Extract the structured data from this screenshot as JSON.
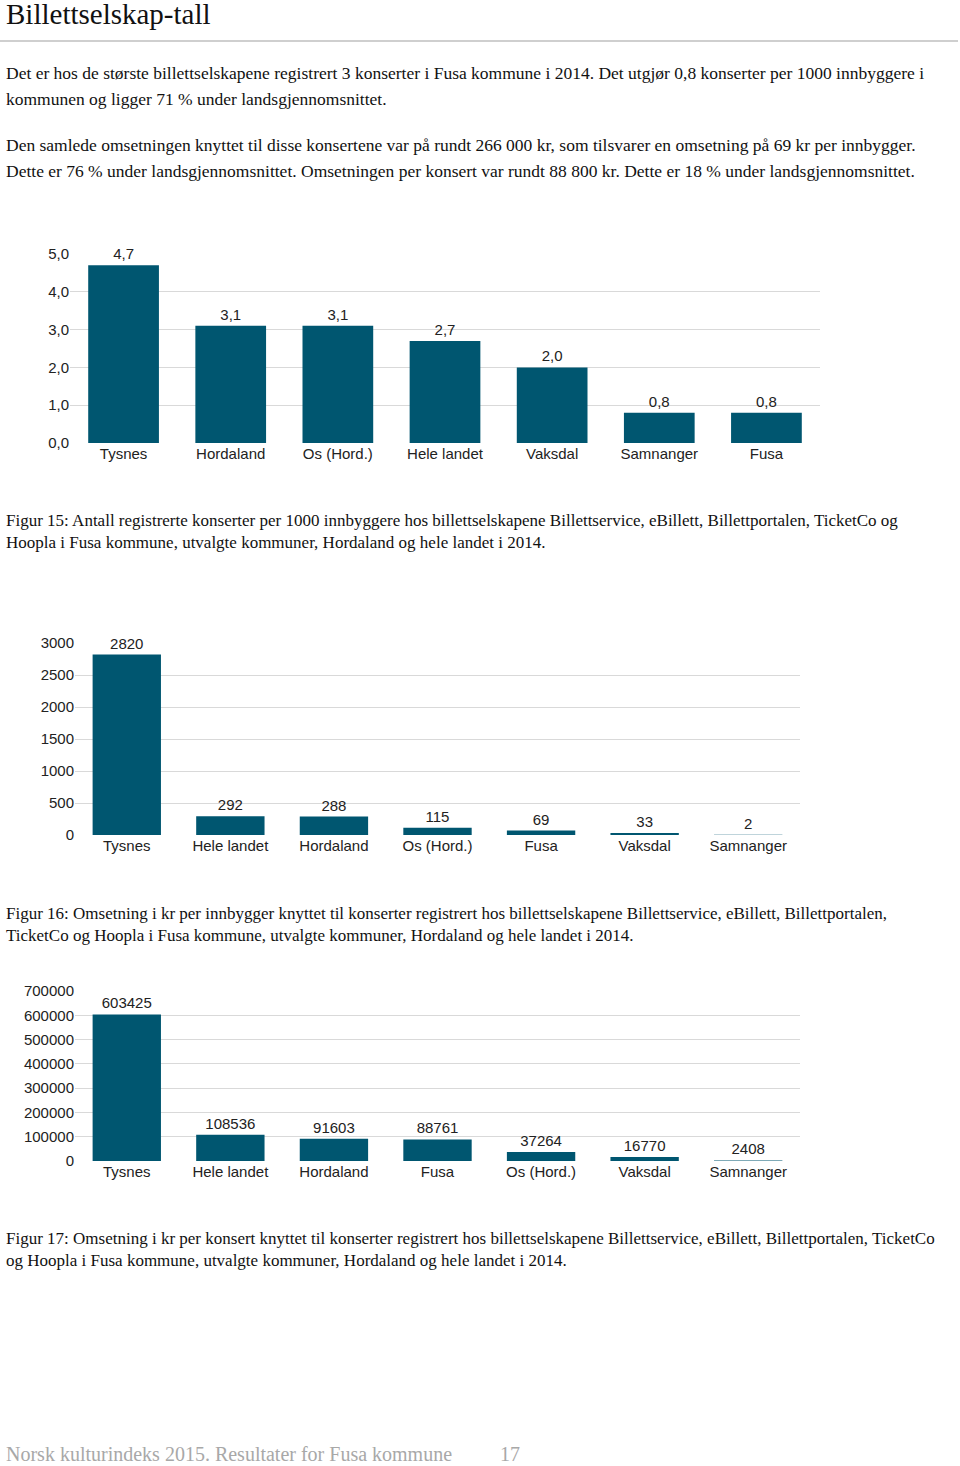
{
  "document": {
    "title": "Billettselskap-tall",
    "paragraphs": [
      "Det er hos de største billettselskapene registrert 3 konserter i Fusa kommune i 2014. Det utgjør 0,8 konserter per 1000 innbyggere i kommunen og ligger 71 % under landsgjennomsnittet.",
      "Den samlede omsetningen knyttet til disse konsertene var på rundt 266 000 kr, som tilsvarer en omsetning på 69 kr per innbygger. Dette er 76 % under landsgjennomsnittet. Omsetningen per konsert var rundt 88 800 kr. Dette er 18 % under landsgjennomsnittet."
    ],
    "captions": [
      "Figur 15: Antall registrerte konserter per 1000 innbyggere hos billettselskapene Billettservice, eBillett, Billettportalen, TicketCo og Hoopla i Fusa kommune, utvalgte kommuner, Hordaland og hele landet  i 2014.",
      "Figur 16: Omsetning i kr per innbygger knyttet til konserter registrert hos billettselskapene Billettservice, eBillett, Billettportalen, TicketCo og Hoopla i Fusa kommune, utvalgte kommuner, Hordaland og hele landet i 2014.",
      "Figur 17: Omsetning i kr per konsert knyttet til konserter registrert hos billettselskapene Billettservice, eBillett, Billettportalen, TicketCo og Hoopla i Fusa kommune, utvalgte kommuner, Hordaland og hele landet  i 2014."
    ],
    "footer": "Norsk kulturindeks 2015. Resultater for Fusa kommune",
    "page_number": "17"
  },
  "chart_data": [
    {
      "type": "bar",
      "categories": [
        "Tysnes",
        "Hordaland",
        "Os (Hord.)",
        "Hele landet",
        "Vaksdal",
        "Samnanger",
        "Fusa"
      ],
      "values": [
        4.7,
        3.1,
        3.1,
        2.7,
        2.0,
        0.8,
        0.8
      ],
      "value_labels": [
        "4,7",
        "3,1",
        "3,1",
        "2,7",
        "2,0",
        "0,8",
        "0,8"
      ],
      "color": "#005670",
      "ylim": [
        0,
        5
      ],
      "yticks": [
        {
          "value": 0,
          "label": "0,0"
        },
        {
          "value": 1,
          "label": "1,0"
        },
        {
          "value": 2,
          "label": "2,0"
        },
        {
          "value": 3,
          "label": "3,0"
        },
        {
          "value": 4,
          "label": "4,0"
        },
        {
          "value": 5,
          "label": "5,0"
        }
      ],
      "grid": true,
      "data_labels": true
    },
    {
      "type": "bar",
      "categories": [
        "Tysnes",
        "Hele landet",
        "Hordaland",
        "Os (Hord.)",
        "Fusa",
        "Vaksdal",
        "Samnanger"
      ],
      "values": [
        2820,
        292,
        288,
        115,
        69,
        33,
        2
      ],
      "color": "#005670",
      "ylim": [
        0,
        3000
      ],
      "yticks": [
        0,
        500,
        1000,
        1500,
        2000,
        2500,
        3000
      ],
      "grid": true,
      "data_labels": true
    },
    {
      "type": "bar",
      "categories": [
        "Tysnes",
        "Hele landet",
        "Hordaland",
        "Fusa",
        "Os (Hord.)",
        "Vaksdal",
        "Samnanger"
      ],
      "values": [
        603425,
        108536,
        91603,
        88761,
        37264,
        16770,
        2408
      ],
      "color": "#005670",
      "ylim": [
        0,
        700000
      ],
      "yticks": [
        0,
        100000,
        200000,
        300000,
        400000,
        500000,
        600000,
        700000
      ],
      "grid": true,
      "data_labels": true
    }
  ]
}
